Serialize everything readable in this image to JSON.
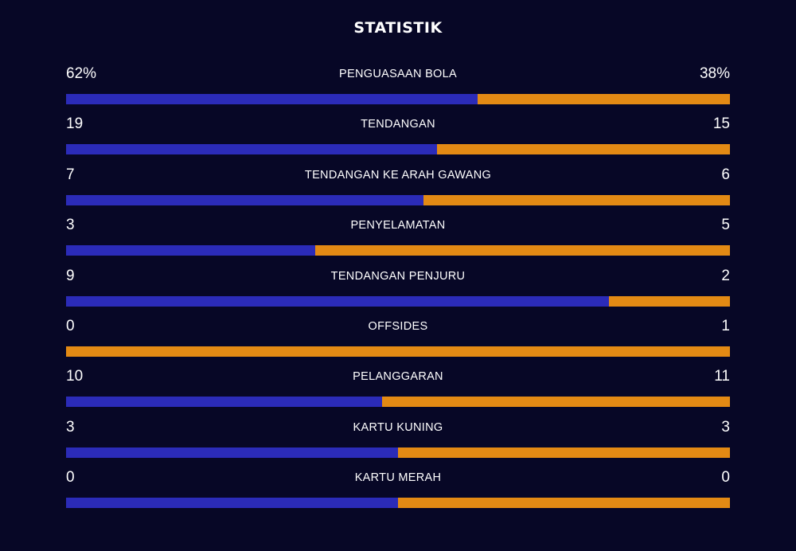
{
  "title": "STATISTIK",
  "colors": {
    "background": "#070726",
    "home": "#2b2bb8",
    "away": "#e38a14"
  },
  "chart_data": {
    "type": "bar",
    "title": "STATISTIK",
    "orientation": "horizontal-stacked-comparison",
    "categories": [
      "PENGUASAAN BOLA",
      "TENDANGAN",
      "TENDANGAN KE ARAH GAWANG",
      "PENYELAMATAN",
      "TENDANGAN PENJURU",
      "OFFSIDES",
      "PELANGGARAN",
      "KARTU KUNING",
      "KARTU MERAH"
    ],
    "rows": [
      {
        "label": "PENGUASAAN BOLA",
        "left_display": "62%",
        "right_display": "38%",
        "left": 62,
        "right": 38
      },
      {
        "label": "TENDANGAN",
        "left_display": "19",
        "right_display": "15",
        "left": 19,
        "right": 15
      },
      {
        "label": "TENDANGAN KE ARAH GAWANG",
        "left_display": "7",
        "right_display": "6",
        "left": 7,
        "right": 6
      },
      {
        "label": "PENYELAMATAN",
        "left_display": "3",
        "right_display": "5",
        "left": 3,
        "right": 5
      },
      {
        "label": "TENDANGAN PENJURU",
        "left_display": "9",
        "right_display": "2",
        "left": 9,
        "right": 2
      },
      {
        "label": "OFFSIDES",
        "left_display": "0",
        "right_display": "1",
        "left": 0,
        "right": 1
      },
      {
        "label": "PELANGGARAN",
        "left_display": "10",
        "right_display": "11",
        "left": 10,
        "right": 11
      },
      {
        "label": "KARTU KUNING",
        "left_display": "3",
        "right_display": "3",
        "left": 3,
        "right": 3
      },
      {
        "label": "KARTU MERAH",
        "left_display": "0",
        "right_display": "0",
        "left": 0,
        "right": 0
      }
    ],
    "legend": "none",
    "grid": false
  }
}
